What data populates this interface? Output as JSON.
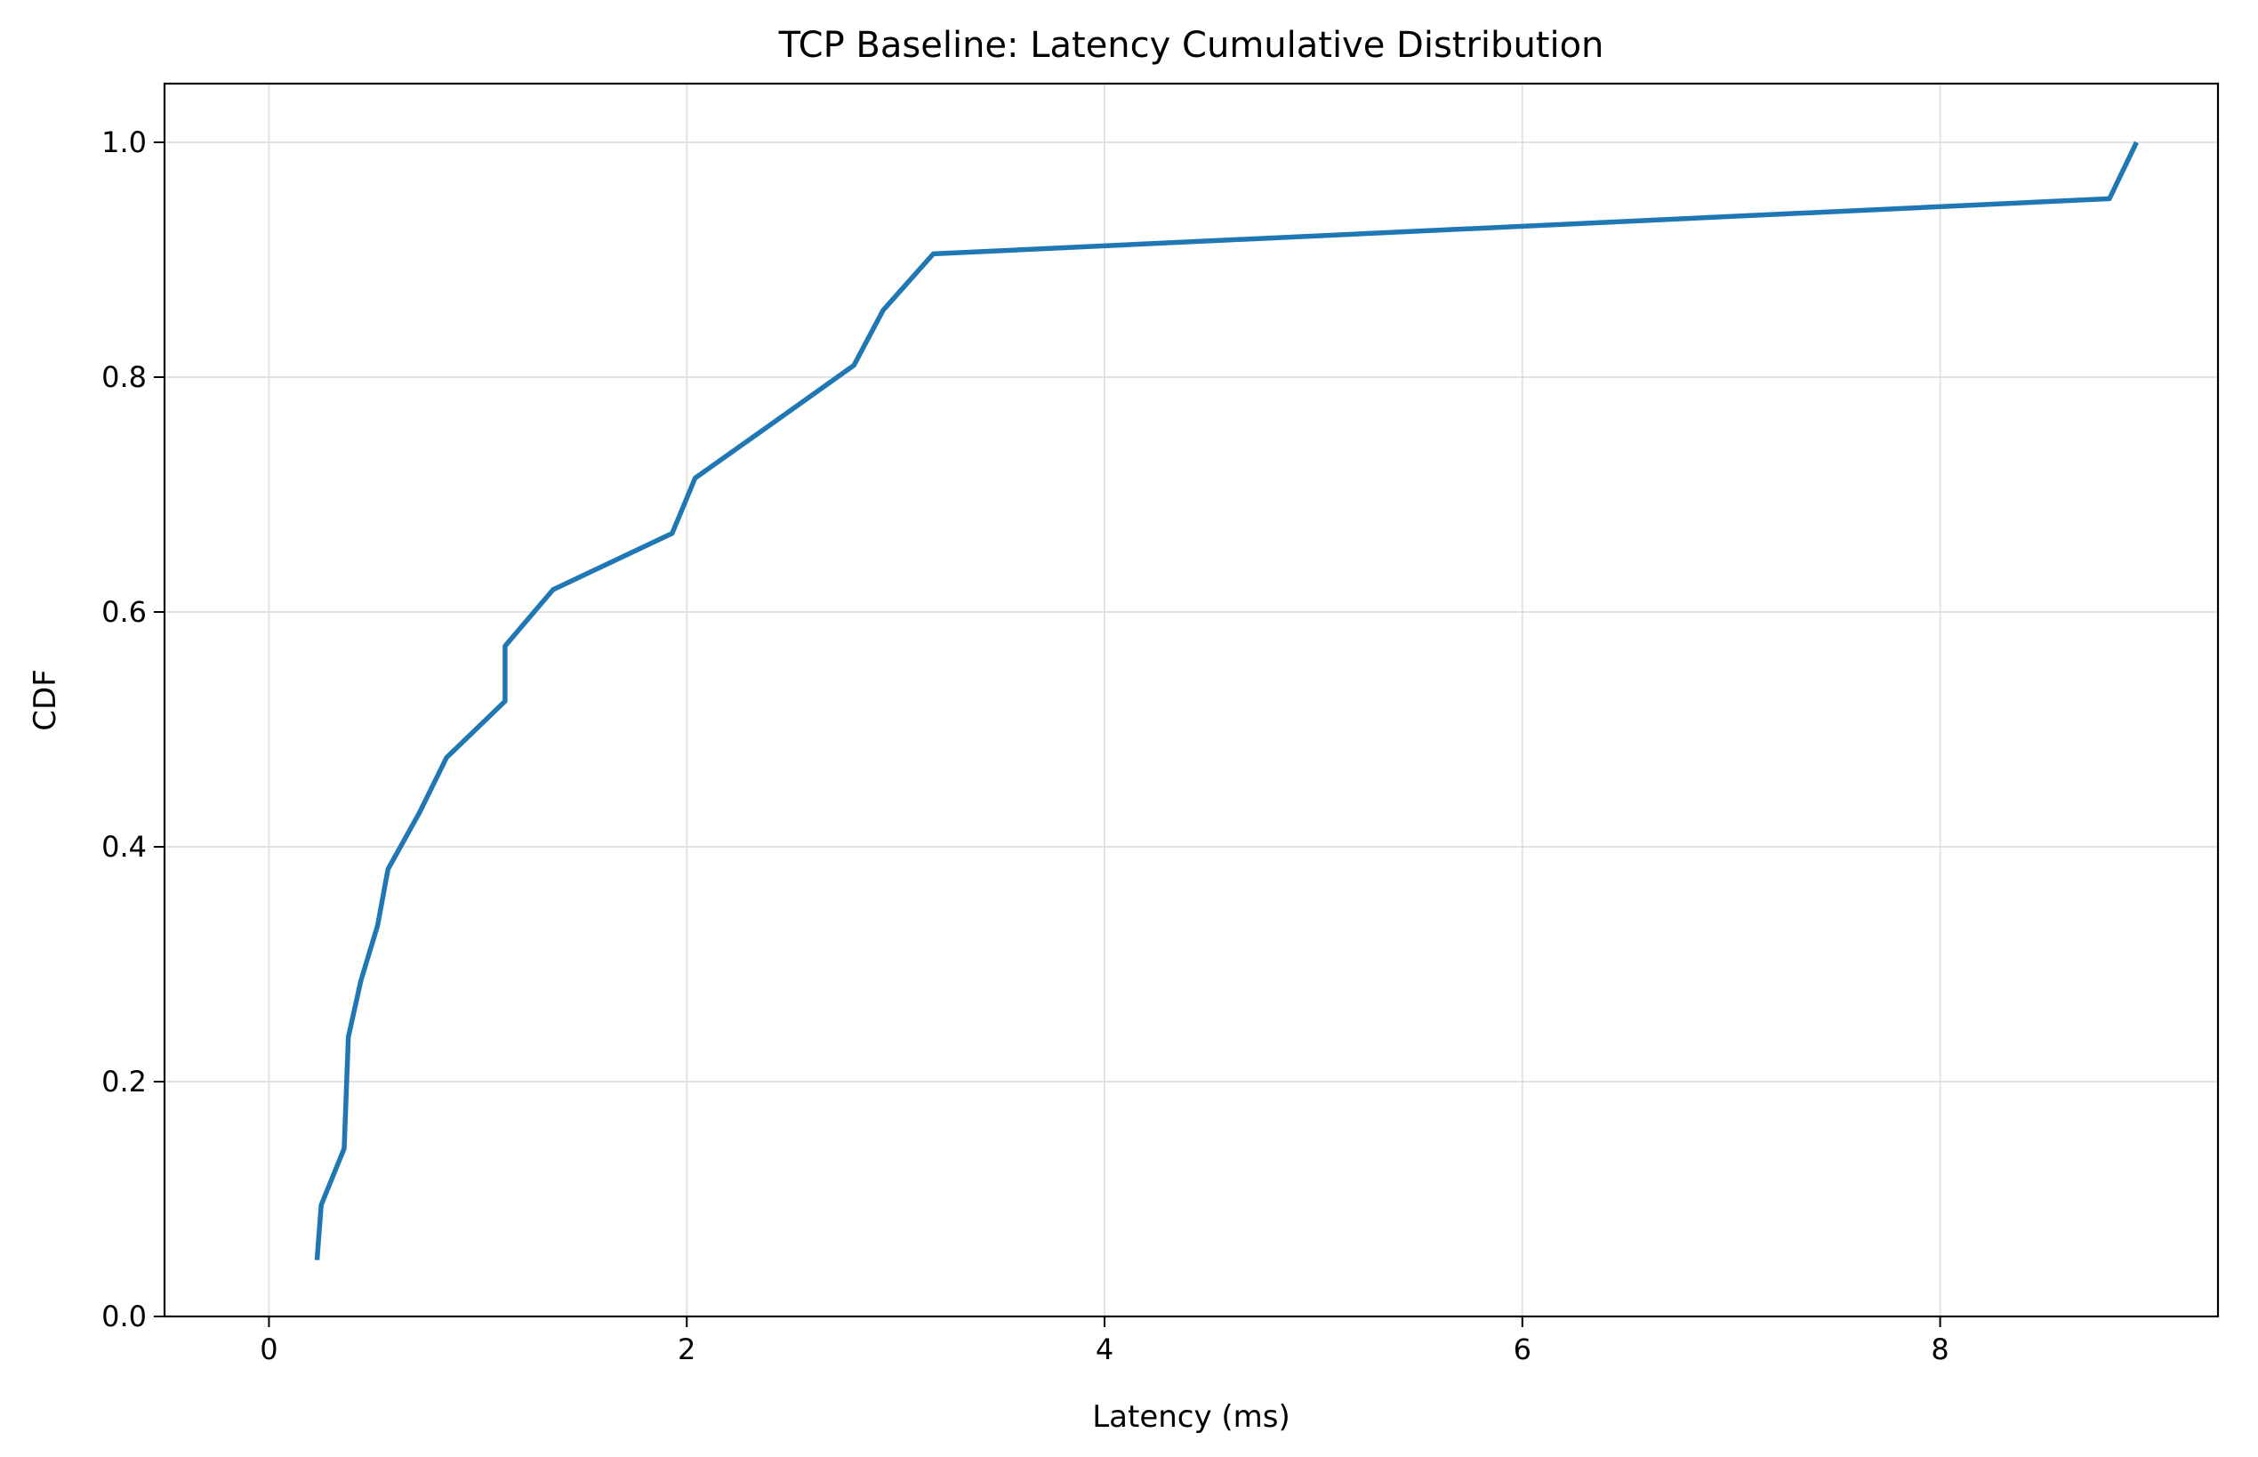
{
  "chart_data": {
    "type": "line",
    "title": "TCP Baseline: Latency Cumulative Distribution",
    "xlabel": "Latency (ms)",
    "ylabel": "CDF",
    "xlim": [
      -0.5,
      9.33
    ],
    "ylim": [
      0.0,
      1.05
    ],
    "xticks": [
      0,
      2,
      4,
      6,
      8
    ],
    "yticks": [
      0.0,
      0.2,
      0.4,
      0.6,
      0.8,
      1.0
    ],
    "xtick_labels": [
      "0",
      "2",
      "4",
      "6",
      "8"
    ],
    "ytick_labels": [
      "0.0",
      "0.2",
      "0.4",
      "0.6",
      "0.8",
      "1.0"
    ],
    "grid": true,
    "series": [
      {
        "color": "#1f77b4",
        "x": [
          0.23,
          0.25,
          0.36,
          0.38,
          0.44,
          0.52,
          0.57,
          0.72,
          0.85,
          1.13,
          1.13,
          1.36,
          1.93,
          2.04,
          2.42,
          2.8,
          2.94,
          3.18,
          8.81,
          8.94
        ],
        "y": [
          0.048,
          0.095,
          0.143,
          0.238,
          0.286,
          0.333,
          0.381,
          0.429,
          0.476,
          0.524,
          0.571,
          0.619,
          0.667,
          0.714,
          0.762,
          0.81,
          0.857,
          0.905,
          0.952,
          1.0
        ]
      }
    ]
  }
}
